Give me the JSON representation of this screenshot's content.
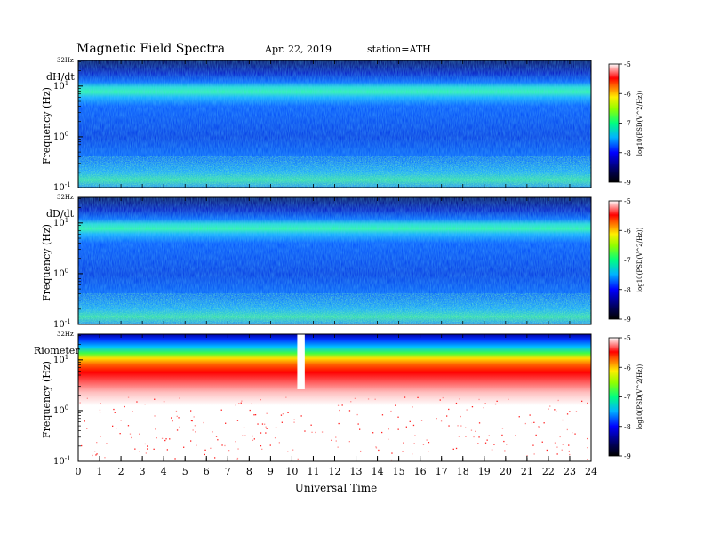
{
  "header": {
    "title": "Magnetic  Field  Spectra",
    "date": "Apr. 22, 2019",
    "station": "station=ATH"
  },
  "chart_data": [
    {
      "type": "heatmap",
      "panel_label": "dH/dt",
      "ylabel": "Frequency  (Hz)",
      "top_label": "32Hz",
      "y_ticks": [
        {
          "base": "10",
          "exp": "-1"
        },
        {
          "base": "10",
          "exp": "0"
        },
        {
          "base": "10",
          "exp": "1"
        }
      ],
      "yscale": "log",
      "ylim": [
        0.1,
        32
      ],
      "colorbar": {
        "ticks": [
          "-5",
          "-6",
          "-7",
          "-8",
          "-9"
        ],
        "label": "log10(PSD(V^2/Hz))",
        "range": [
          -9,
          -5
        ]
      }
    },
    {
      "type": "heatmap",
      "panel_label": "dD/dt",
      "ylabel": "Frequency  (Hz)",
      "top_label": "32Hz",
      "y_ticks": [
        {
          "base": "10",
          "exp": "-1"
        },
        {
          "base": "10",
          "exp": "0"
        },
        {
          "base": "10",
          "exp": "1"
        }
      ],
      "yscale": "log",
      "ylim": [
        0.1,
        32
      ],
      "colorbar": {
        "ticks": [
          "-5",
          "-6",
          "-7",
          "-8",
          "-9"
        ],
        "label": "log10(PSD(V^2/Hz))",
        "range": [
          -9,
          -5
        ]
      }
    },
    {
      "type": "heatmap",
      "panel_label": "Riometer",
      "ylabel": "Frequency  (Hz)",
      "top_label": "32Hz",
      "y_ticks": [
        {
          "base": "10",
          "exp": "-1"
        },
        {
          "base": "10",
          "exp": "0"
        },
        {
          "base": "10",
          "exp": "1"
        }
      ],
      "yscale": "log",
      "ylim": [
        0.1,
        32
      ],
      "data_gap_hours": [
        10.25,
        10.6
      ],
      "colorbar": {
        "ticks": [
          "-5",
          "-6",
          "-7",
          "-8",
          "-9"
        ],
        "label": "log10(PSD(V^2/Hz))",
        "range": [
          -9,
          -5
        ]
      }
    }
  ],
  "xaxis": {
    "label": "Universal Time",
    "ticks": [
      "0",
      "1",
      "2",
      "3",
      "4",
      "5",
      "6",
      "7",
      "8",
      "9",
      "10",
      "11",
      "12",
      "13",
      "14",
      "15",
      "16",
      "17",
      "18",
      "19",
      "20",
      "21",
      "22",
      "23",
      "24"
    ],
    "xlim": [
      0,
      24
    ]
  },
  "colors": {
    "deep_blue": "#00006e",
    "blue": "#0030ff",
    "cyan": "#00c8ff",
    "green": "#30ff60",
    "red": "#ff0000",
    "white": "#ffffff"
  }
}
